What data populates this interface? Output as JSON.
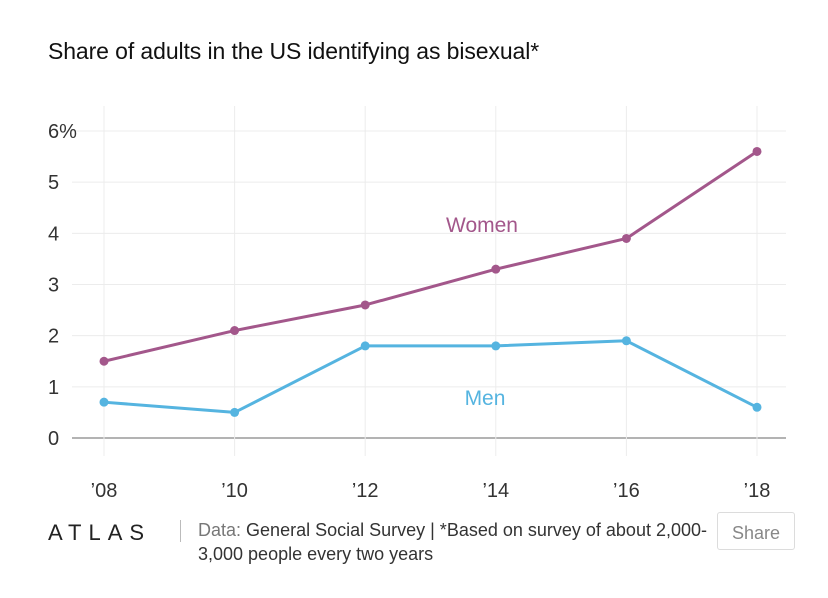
{
  "title": "Share of adults in the US identifying as bisexual*",
  "chart_data": {
    "type": "line",
    "title": "Share of adults in the US identifying as bisexual*",
    "x": [
      "’08",
      "’10",
      "’12",
      "’14",
      "’16",
      "’18"
    ],
    "ylim": [
      0,
      6
    ],
    "yticks": [
      "0",
      "1",
      "2",
      "3",
      "4",
      "5",
      "6%"
    ],
    "grid": true,
    "series": [
      {
        "name": "Women",
        "color": "#a3578b",
        "values": [
          1.5,
          2.1,
          2.6,
          3.3,
          3.9,
          5.6
        ]
      },
      {
        "name": "Men",
        "color": "#55b4e0",
        "values": [
          0.7,
          0.5,
          1.8,
          1.8,
          1.9,
          0.6
        ]
      }
    ]
  },
  "footer": {
    "logo": "ATLAS",
    "source_label": "Data:",
    "source_text": "General Social Survey | *Based on survey of about 2,000-3,000 people every two years",
    "share_label": "Share"
  }
}
